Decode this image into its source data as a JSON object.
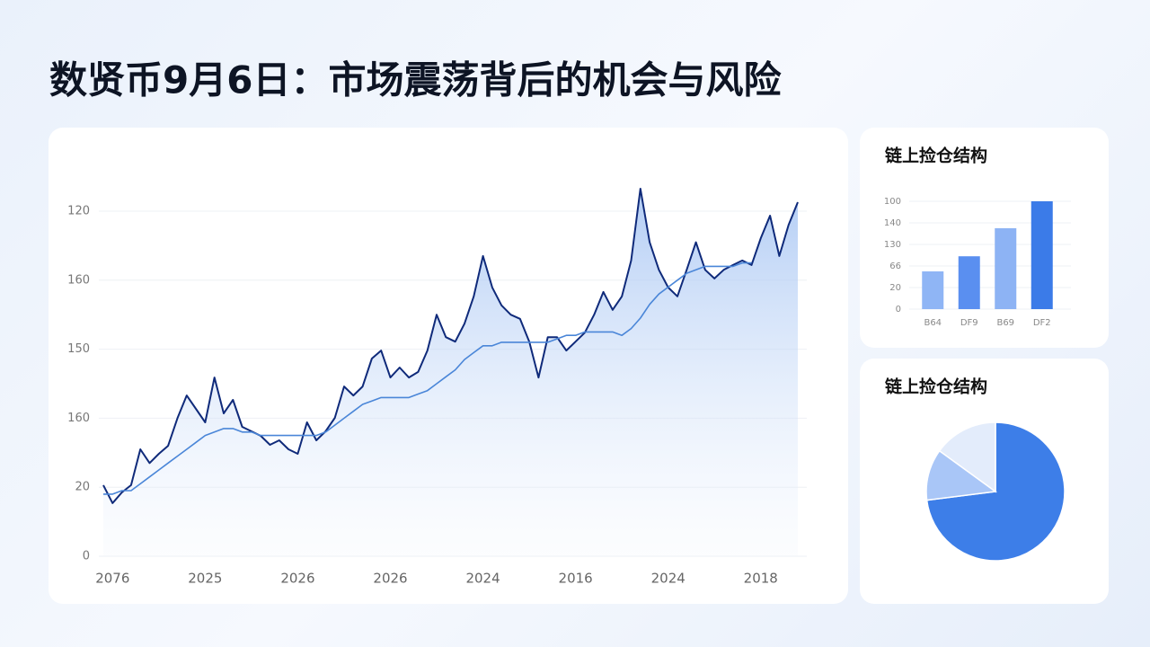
{
  "title": "数贤币9月6日：市场震荡背后的机会与风险",
  "chart_data": [
    {
      "type": "line",
      "categories": [
        null,
        "2076",
        null,
        null,
        null,
        null,
        null,
        null,
        null,
        null,
        null,
        "2025",
        null,
        null,
        null,
        null,
        null,
        null,
        null,
        null,
        null,
        "2026",
        null,
        null,
        null,
        null,
        null,
        null,
        null,
        null,
        null,
        "2026",
        null,
        null,
        null,
        null,
        null,
        null,
        null,
        null,
        null,
        "2024",
        null,
        null,
        null,
        null,
        null,
        null,
        null,
        null,
        null,
        "2016",
        null,
        null,
        null,
        null,
        null,
        null,
        null,
        null,
        null,
        "2024",
        null,
        null,
        null,
        null,
        null,
        null,
        null,
        null,
        null,
        "2018",
        null,
        null,
        null,
        null
      ],
      "series": [
        {
          "color": "#0f2a7a",
          "values": [
            20.6,
            15.4,
            18.5,
            20.6,
            31,
            27,
            29.7,
            32,
            40,
            46.6,
            42.7,
            38.8,
            51.8,
            41.4,
            45.3,
            37.5,
            36.2,
            34.9,
            32.3,
            33.6,
            31,
            29.7,
            38.8,
            33.6,
            36.2,
            40.1,
            49.2,
            46.6,
            49.2,
            57.3,
            59.6,
            51.8,
            54.7,
            51.8,
            53.4,
            59.6,
            70,
            63.5,
            62.2,
            67.4,
            75.3,
            87,
            77.9,
            72.7,
            70,
            68.8,
            62.2,
            51.8,
            63.5,
            63.5,
            59.6,
            62.2,
            64.8,
            70,
            76.6,
            71.4,
            75.3,
            85.7,
            106.5,
            91,
            83,
            77.9,
            75.3,
            83,
            91,
            83,
            80.5,
            83,
            84.4,
            85.7,
            84.4,
            92.2,
            98.7,
            87,
            96,
            102.6
          ]
        },
        {
          "color": "#4a86d8",
          "values": [
            18,
            18,
            19,
            19,
            21,
            23,
            25,
            27,
            29,
            31,
            33,
            35,
            36,
            37,
            37,
            36,
            36,
            35,
            35,
            35,
            35,
            35,
            35,
            35,
            36,
            38,
            40,
            42,
            44,
            45,
            46,
            46,
            46,
            46,
            47,
            48,
            50,
            52,
            54,
            57,
            59,
            61,
            61,
            62,
            62,
            62,
            62,
            62,
            62,
            63,
            64,
            64,
            65,
            65,
            65,
            65,
            64,
            66,
            69,
            73,
            76,
            78,
            80,
            82,
            83,
            84,
            84,
            84,
            84,
            85,
            85,
            null,
            null,
            null,
            null,
            null
          ]
        }
      ],
      "ylim": [
        0,
        100
      ],
      "yticks": [
        0,
        20,
        {
          "value": 40,
          "label": "160"
        },
        {
          "value": 60,
          "label": "150"
        },
        {
          "value": 80,
          "label": "160"
        },
        {
          "value": 100,
          "label": "120"
        }
      ],
      "grid": true
    },
    {
      "type": "bar",
      "title": "链上捡仓结构",
      "categories": [
        "B64",
        "DF9",
        "B69",
        "DF2"
      ],
      "values": [
        35,
        49,
        75,
        100
      ],
      "colors": [
        "#8fb5f5",
        "#5a8ff0",
        "#8db3f4",
        "#3b7be8"
      ],
      "ylim": [
        0,
        100
      ],
      "yticks": [
        0,
        20,
        {
          "value": 40,
          "label": "66"
        },
        {
          "value": 60,
          "label": "130"
        },
        {
          "value": 80,
          "label": "140"
        },
        100
      ],
      "grid": true
    },
    {
      "type": "pie",
      "title": "链上捡仓结构",
      "values": [
        73,
        12,
        15
      ],
      "colors": [
        "#3d7ee8",
        "#a9c6f7",
        "#e3ecfb"
      ]
    }
  ]
}
